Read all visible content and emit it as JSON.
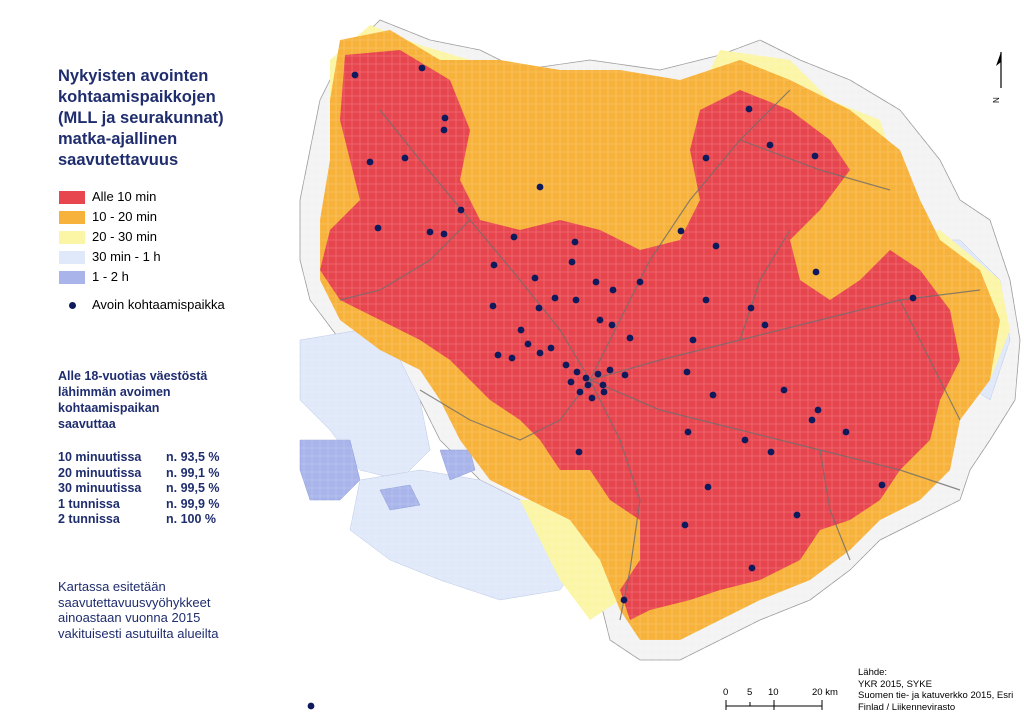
{
  "title": {
    "lines": [
      "Nykyisten avointen",
      "kohtaamispaikkojen",
      "(MLL ja seurakunnat)",
      "matka-ajallinen",
      "saavutettavuus"
    ]
  },
  "legend": {
    "classes": [
      {
        "label": "Alle 10 min",
        "color": "#e8464f"
      },
      {
        "label": "10 - 20 min",
        "color": "#f7b23b"
      },
      {
        "label": "20 - 30 min",
        "color": "#fbf5a6"
      },
      {
        "label": "30 min - 1 h",
        "color": "#dfe9f9"
      },
      {
        "label": "1 - 2 h",
        "color": "#a8b4ea"
      }
    ],
    "point_label": "Avoin kohtaamispaikka",
    "point_color": "#0f1a5c"
  },
  "stats": {
    "heading_lines": [
      "Alle 18-vuotias väestöstä",
      "lähimmän avoimen",
      "kohtaamispaikan",
      "saavuttaa"
    ],
    "rows": [
      {
        "label": "10 minuutissa",
        "value": "n. 93,5 %"
      },
      {
        "label": "20 minuutissa",
        "value": "n. 99,1 %"
      },
      {
        "label": "30 minuutissa",
        "value": "n. 99,5 %"
      },
      {
        "label": "1 tunnissa",
        "value": "n. 99,9 %"
      },
      {
        "label": "2 tunnissa",
        "value": "n. 100 %"
      }
    ]
  },
  "note": {
    "lines": [
      "Kartassa esitetään",
      "saavutettavuusvyöhykkeet",
      "ainoastaan vuonna 2015",
      "vakituisesti asutuilta alueilta"
    ]
  },
  "source": {
    "lines": [
      "Lähde:",
      "YKR 2015, SYKE",
      "Suomen tie- ja katuverkko 2015, Esri",
      "Finlad / Liikennevirasto"
    ]
  },
  "scale_bar": {
    "labels": [
      "0",
      "5",
      "10",
      "20 km"
    ],
    "km": [
      0,
      5,
      10,
      20
    ]
  },
  "north_arrow": {
    "label": "N",
    "icon": "north-arrow-icon"
  }
}
